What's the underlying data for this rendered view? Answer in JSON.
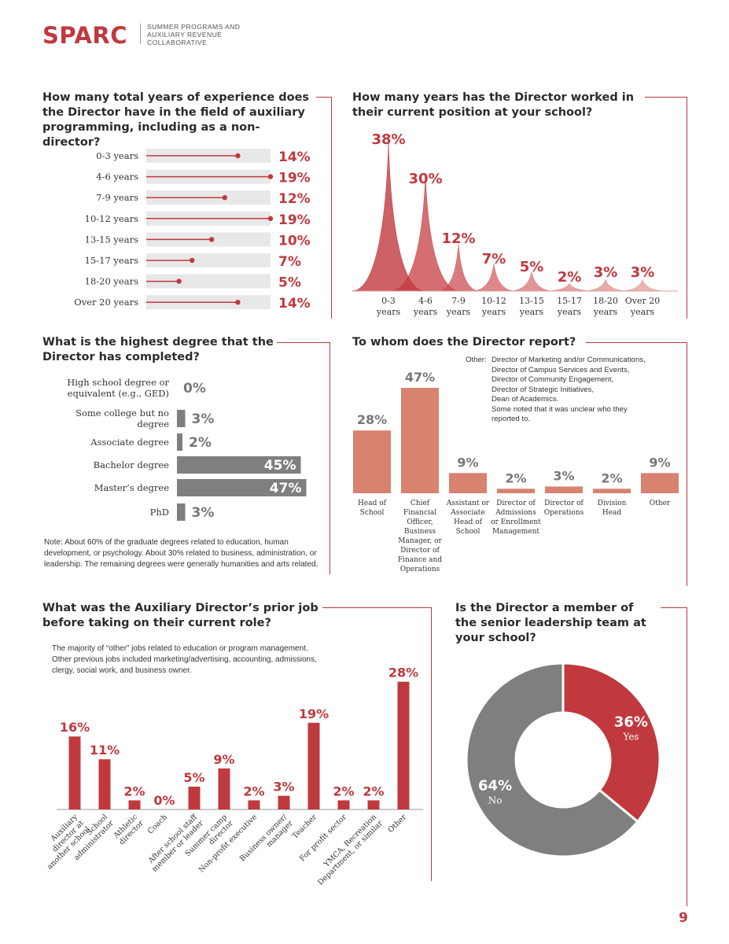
{
  "header": {
    "logo_text": "SPARC",
    "tagline": "SUMMER PROGRAMS AND AUXILIARY REVENUE COLLABORATIVE"
  },
  "page_number": "9",
  "colors": {
    "red": "#c0393e",
    "salmon": "#d88270",
    "gray": "#7f7f7f",
    "track": "#e8e8e8"
  },
  "chart_data": [
    {
      "id": "experience",
      "type": "bar",
      "title": "How many total years of experience does the Director have in the field of auxiliary programming, including as a non-director?",
      "categories": [
        "0-3 years",
        "4-6 years",
        "7-9 years",
        "10-12 years",
        "13-15 years",
        "15-17 years",
        "18-20 years",
        "Over 20 years"
      ],
      "values": [
        14,
        19,
        12,
        19,
        10,
        7,
        5,
        14
      ],
      "value_labels": [
        "14%",
        "19%",
        "12%",
        "19%",
        "10%",
        "7%",
        "5%",
        "14%"
      ]
    },
    {
      "id": "tenure",
      "type": "area",
      "title": "How many years has the Director worked in their current position at your school?",
      "categories": [
        "0-3 years",
        "4-6 years",
        "7-9 years",
        "10-12 years",
        "13-15 years",
        "15-17 years",
        "18-20 years",
        "Over 20 years"
      ],
      "category_lines": [
        [
          "0-3",
          "years"
        ],
        [
          "4-6",
          "years"
        ],
        [
          "7-9",
          "years"
        ],
        [
          "10-12",
          "years"
        ],
        [
          "13-15",
          "years"
        ],
        [
          "15-17",
          "years"
        ],
        [
          "18-20",
          "years"
        ],
        [
          "Over 20",
          "years"
        ]
      ],
      "values": [
        38,
        30,
        12,
        7,
        5,
        2,
        3,
        3
      ],
      "value_labels": [
        "38%",
        "30%",
        "12%",
        "7%",
        "5%",
        "2%",
        "3%",
        "3%"
      ]
    },
    {
      "id": "degree",
      "type": "bar",
      "title": "What is the highest degree that the Director has completed?",
      "categories": [
        "High school degree or equivalent (e.g., GED)",
        "Some college but no degree",
        "Associate degree",
        "Bachelor degree",
        "Master's degree",
        "PhD"
      ],
      "category_lines": [
        [
          "High school degree or",
          "equivalent (e.g., GED)"
        ],
        [
          "Some college but no",
          "degree"
        ],
        [
          "Associate degree"
        ],
        [
          "Bachelor degree"
        ],
        [
          "Master’s degree"
        ],
        [
          "PhD"
        ]
      ],
      "values": [
        0,
        3,
        2,
        45,
        47,
        3
      ],
      "value_labels": [
        "0%",
        "3%",
        "2%",
        "45%",
        "47%",
        "3%"
      ],
      "note": "Note: About 60% of the graduate degrees related to education, human development, or psychology. About 30% related to business, administration, or leadership. The remaining degrees were generally humanities and arts related."
    },
    {
      "id": "report",
      "type": "bar",
      "title": "To whom does the Director report?",
      "categories": [
        "Head of School",
        "Chief Financial Officer, Business Manager, or Director of Finance and Operations",
        "Assistant or Associate Head of School",
        "Director of Admissions or Enrollment Management",
        "Director of Operations",
        "Division Head",
        "Other"
      ],
      "category_lines": [
        [
          "Head of",
          "School"
        ],
        [
          "Chief",
          "Financial",
          "Officer,",
          "Business",
          "Manager, or",
          "Director of",
          "Finance and",
          "Operations"
        ],
        [
          "Assistant or",
          "Associate",
          "Head of",
          "School"
        ],
        [
          "Director of",
          "Admissions",
          "or Enrollment",
          "Management"
        ],
        [
          "Director of",
          "Operations"
        ],
        [
          "Division",
          "Head"
        ],
        [
          "Other"
        ]
      ],
      "values": [
        28,
        47,
        9,
        2,
        3,
        2,
        9
      ],
      "value_labels": [
        "28%",
        "47%",
        "9%",
        "2%",
        "3%",
        "2%",
        "9%"
      ],
      "other_label": "Other:",
      "other_lines": [
        "Director of Marketing and/or Communications,",
        "Director of Campus Services and Events,",
        "Director of Community Engagement,",
        "Director of Strategic Initiatives,",
        "Dean of Academics.",
        "Some noted that it was unclear who they",
        "reported to."
      ]
    },
    {
      "id": "prior_job",
      "type": "bar",
      "title": "What was the Auxiliary Director’s prior job before taking on their current role?",
      "categories": [
        "Auxiliary director at another school",
        "School administrator",
        "Athletic director",
        "Coach",
        "After school staff member or leader",
        "Summer camp director",
        "Non-profit executive",
        "Business owner/ manager",
        "Teacher",
        "For profit sector",
        "YMCA, Recreation Department, or similar",
        "Other"
      ],
      "category_lines": [
        [
          "Auxiliary",
          "director at",
          "another school"
        ],
        [
          "School",
          "administrator"
        ],
        [
          "Athletic",
          "director"
        ],
        [
          "Coach"
        ],
        [
          "After school staff",
          "member or leader"
        ],
        [
          "Summer camp",
          "director"
        ],
        [
          "Non-profit executive"
        ],
        [
          "Business owner/",
          "manager"
        ],
        [
          "Teacher"
        ],
        [
          "For profit sector"
        ],
        [
          "YMCA, Recreation",
          "Department, or similar"
        ],
        [
          "Other"
        ]
      ],
      "values": [
        16,
        11,
        2,
        0,
        5,
        9,
        2,
        3,
        19,
        2,
        2,
        28
      ],
      "value_labels": [
        "16%",
        "11%",
        "2%",
        "0%",
        "5%",
        "9%",
        "2%",
        "3%",
        "19%",
        "2%",
        "2%",
        "28%"
      ],
      "note": "The majority of “other” jobs related to education or program management. Other previous jobs included marketing/advertising, accounting, admissions, clergy, social work, and business owner."
    },
    {
      "id": "leadership",
      "type": "pie",
      "title": "Is the Director a member of the senior leadership team at your school?",
      "categories": [
        "Yes",
        "No"
      ],
      "values": [
        36,
        64
      ],
      "value_labels": [
        "36%",
        "64%"
      ]
    }
  ]
}
